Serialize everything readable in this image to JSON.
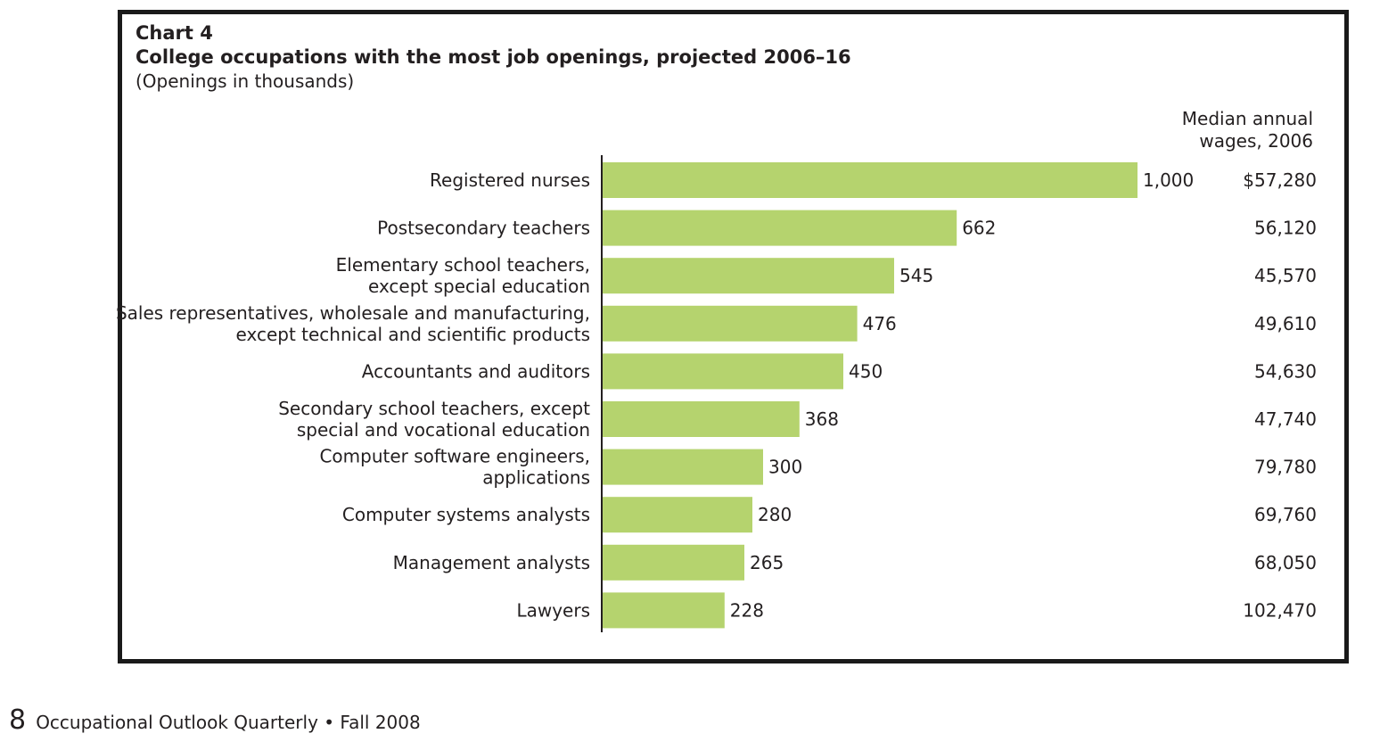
{
  "chart_data": {
    "type": "bar",
    "orientation": "horizontal",
    "label": "Chart 4",
    "title": "College occupations with the most job openings, projected 2006–16",
    "subtitle": "(Openings in thousands)",
    "categories": [
      [
        "Registered nurses"
      ],
      [
        "Postsecondary teachers"
      ],
      [
        "Elementary school teachers,",
        "except special education"
      ],
      [
        "Sales representatives, wholesale and manufacturing,",
        "except technical and scientific products"
      ],
      [
        "Accountants and auditors"
      ],
      [
        "Secondary school teachers, except",
        "special and vocational education"
      ],
      [
        "Computer software engineers,",
        "applications"
      ],
      [
        "Computer systems analysts"
      ],
      [
        "Management analysts"
      ],
      [
        "Lawyers"
      ]
    ],
    "values": [
      1000,
      662,
      545,
      476,
      450,
      368,
      300,
      280,
      265,
      228
    ],
    "value_labels": [
      "1,000",
      "662",
      "545",
      "476",
      "450",
      "368",
      "300",
      "280",
      "265",
      "228"
    ],
    "wage_header": [
      "Median annual",
      "wages, 2006"
    ],
    "wages": [
      "$57,280",
      "56,120",
      "45,570",
      "49,610",
      "54,630",
      "47,740",
      "79,780",
      "69,760",
      "68,050",
      "102,470"
    ],
    "xlim": [
      0,
      1000
    ],
    "bar_color": "#b5d36e",
    "axis_color": "#231f20",
    "grid": false
  },
  "footer": {
    "page_number": "8",
    "publication": "Occupational Outlook Quarterly • Fall 2008"
  }
}
